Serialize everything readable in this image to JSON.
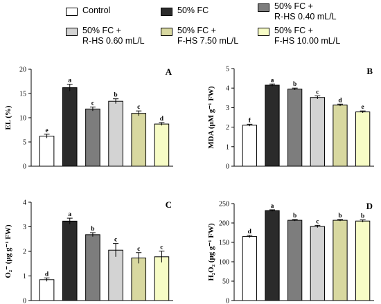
{
  "legend": [
    {
      "label": "Control",
      "color": "#ffffff"
    },
    {
      "label": "50% FC",
      "color": "#2b2b2b"
    },
    {
      "label": "50% FC +\nR-HS 0.40 mL/L",
      "color": "#7d7d7d"
    },
    {
      "label": "50% FC +\nR-HS 0.60 mL/L",
      "color": "#d3d3d3"
    },
    {
      "label": "50% FC +\nF-HS 7.50 mL/L",
      "color": "#d8d8a0"
    },
    {
      "label": "50% FC +\nF-HS 10.00 mL/L",
      "color": "#f7fcc6"
    }
  ],
  "chart_data": [
    {
      "type": "bar",
      "panel_label": "A",
      "ylabel": "EL (%)",
      "ylim": [
        0,
        20
      ],
      "yticks": [
        0,
        5,
        10,
        15,
        20
      ],
      "values": [
        6.2,
        16.2,
        11.8,
        13.4,
        10.9,
        8.7
      ],
      "errors": [
        0.4,
        0.7,
        0.4,
        0.5,
        0.5,
        0.3
      ],
      "letters": [
        "e",
        "a",
        "c",
        "b",
        "c",
        "d"
      ]
    },
    {
      "type": "bar",
      "panel_label": "B",
      "ylabel": "MDA (μM g⁻¹ FW)",
      "ylim": [
        0,
        5
      ],
      "yticks": [
        0,
        1,
        2,
        3,
        4,
        5
      ],
      "values": [
        2.1,
        4.15,
        3.95,
        3.52,
        3.13,
        2.78
      ],
      "errors": [
        0.05,
        0.06,
        0.05,
        0.08,
        0.05,
        0.05
      ],
      "letters": [
        "f",
        "a",
        "b",
        "c",
        "d",
        "e"
      ]
    },
    {
      "type": "bar",
      "panel_label": "C",
      "ylabel": "O₂⁻ (μg g⁻¹ FW)",
      "ylim": [
        0,
        4
      ],
      "yticks": [
        0,
        1,
        2,
        3,
        4
      ],
      "values": [
        0.85,
        3.23,
        2.68,
        2.05,
        1.73,
        1.78
      ],
      "errors": [
        0.07,
        0.12,
        0.08,
        0.27,
        0.22,
        0.23
      ],
      "letters": [
        "d",
        "a",
        "b",
        "c",
        "c",
        "c"
      ]
    },
    {
      "type": "bar",
      "panel_label": "D",
      "ylabel": "H₂O₂ (μg g⁻¹ FW)",
      "ylim": [
        0,
        250
      ],
      "yticks": [
        0,
        50,
        100,
        150,
        200,
        250
      ],
      "values": [
        165,
        232,
        207,
        191,
        207,
        205
      ],
      "errors": [
        3,
        2,
        2,
        3,
        2,
        3
      ],
      "letters": [
        "d",
        "a",
        "b",
        "c",
        "b",
        "b"
      ]
    }
  ]
}
